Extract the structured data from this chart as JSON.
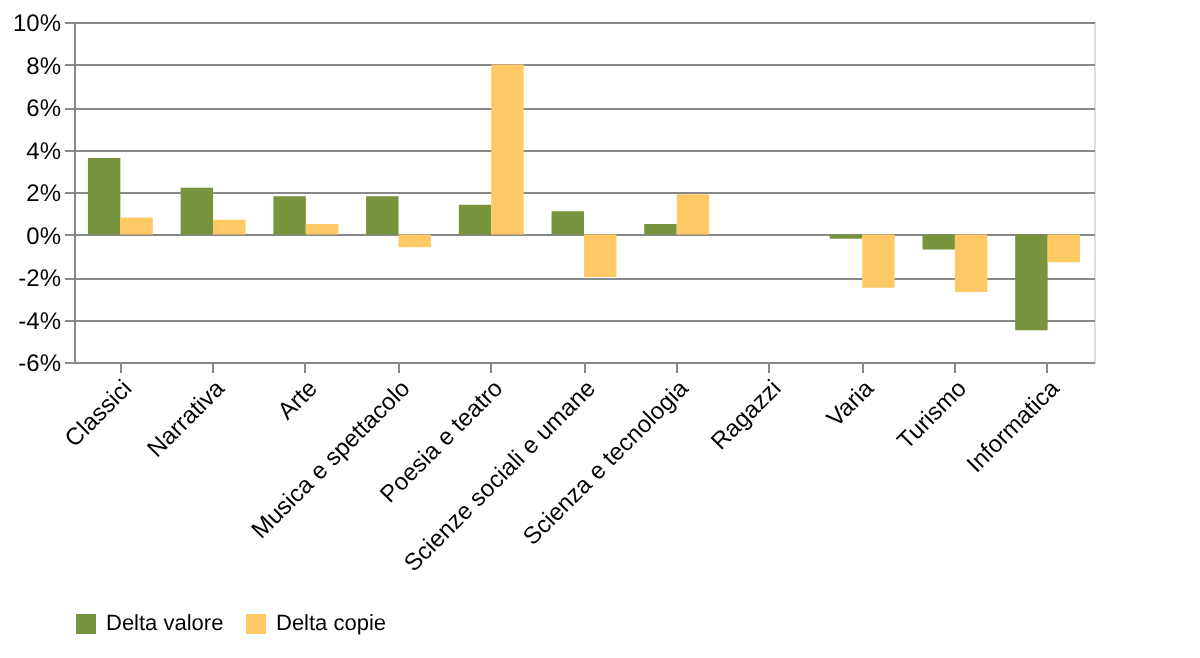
{
  "chart_data": {
    "type": "bar",
    "categories": [
      "Classici",
      "Narrativa",
      "Arte",
      "Musica e spettacolo",
      "Poesia e teatro",
      "Scienze sociali e umane",
      "Scienza e tecnologia",
      "Ragazzi",
      "Varia",
      "Turismo",
      "Informatica"
    ],
    "series": [
      {
        "name": "Delta valore",
        "color": "#77933c",
        "values": [
          3.6,
          2.2,
          1.8,
          1.8,
          1.4,
          1.1,
          0.5,
          0,
          -0.2,
          -0.7,
          -4.5
        ]
      },
      {
        "name": "Delta copie",
        "color": "#ffca66",
        "values": [
          0.8,
          0.7,
          0.5,
          -0.6,
          8.0,
          -2.0,
          1.9,
          0,
          -2.5,
          -2.7,
          -1.3
        ]
      }
    ],
    "ylim": [
      -6,
      10
    ],
    "yticks": [
      {
        "value": -6,
        "label": "-6%"
      },
      {
        "value": -4,
        "label": "-4%"
      },
      {
        "value": -2,
        "label": "-2%"
      },
      {
        "value": 0,
        "label": "0%"
      },
      {
        "value": 2,
        "label": "2%"
      },
      {
        "value": 4,
        "label": "4%"
      },
      {
        "value": 6,
        "label": "6%"
      },
      {
        "value": 8,
        "label": "8%"
      },
      {
        "value": 10,
        "label": "10%"
      }
    ],
    "grid": "y",
    "legend": "bottom"
  }
}
